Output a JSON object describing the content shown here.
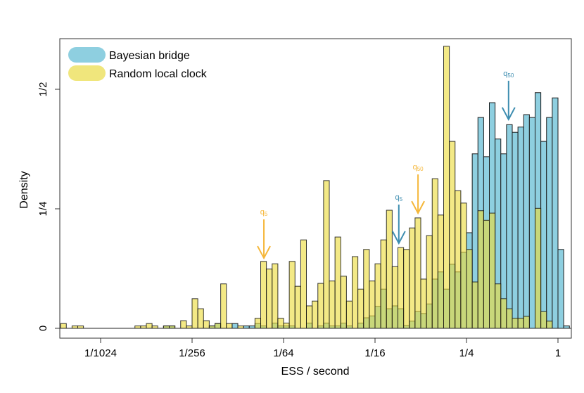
{
  "chart_data": {
    "type": "bar",
    "subtype": "overlaid-histogram",
    "xlabel": "ESS / second",
    "ylabel": "Density",
    "x_scale": "log2",
    "bin_start_log2": -10.875,
    "bin_width_log2": 0.125,
    "xlim_log2": [
      -10.9,
      0.3
    ],
    "ylim": [
      0,
      0.6
    ],
    "x_ticks_log2": [
      -10,
      -8,
      -6,
      -4,
      -2,
      0
    ],
    "x_tick_labels": [
      "1/1024",
      "1/256",
      "1/64",
      "1/16",
      "1/4",
      "1"
    ],
    "y_ticks": [
      0,
      0.25,
      0.5
    ],
    "y_tick_labels": [
      "0",
      "1/4",
      "1/2"
    ],
    "legend_position": "top-left",
    "series": [
      {
        "name": "Bayesian bridge",
        "color": "#8ecfe0",
        "values": [
          0,
          0,
          0,
          0,
          0,
          0,
          0,
          0,
          0,
          0,
          0,
          0,
          0,
          0,
          0,
          0,
          0,
          0,
          0.005,
          0.005,
          0,
          0,
          0,
          0,
          0,
          0,
          0.005,
          0.01,
          0,
          0,
          0.01,
          0,
          0.005,
          0.005,
          0.01,
          0.005,
          0,
          0.011,
          0.005,
          0.005,
          0.005,
          0,
          0,
          0.011,
          0,
          0.005,
          0.011,
          0.005,
          0.005,
          0.011,
          0.005,
          0,
          0.011,
          0.022,
          0.026,
          0.046,
          0.082,
          0.041,
          0.047,
          0.041,
          0.006,
          0.015,
          0.035,
          0.031,
          0.051,
          0.103,
          0.118,
          0.082,
          0.134,
          0.118,
          0.159,
          0.2,
          0.365,
          0.441,
          0.359,
          0.472,
          0.396,
          0.365,
          0.426,
          0.41,
          0.421,
          0.447,
          0.441,
          0.493,
          0.391,
          0.441,
          0.482,
          0.165,
          0.005
        ]
      },
      {
        "name": "Random local clock",
        "color": "#f0e67c",
        "values": [
          0.01,
          0,
          0.005,
          0.005,
          0,
          0,
          0,
          0,
          0,
          0,
          0,
          0,
          0,
          0.005,
          0.005,
          0.01,
          0.005,
          0,
          0.005,
          0.005,
          0,
          0.016,
          0.005,
          0.062,
          0.041,
          0.016,
          0.005,
          0.01,
          0.093,
          0.01,
          0,
          0.005,
          0,
          0,
          0.021,
          0.14,
          0.124,
          0.135,
          0.021,
          0.011,
          0.14,
          0.088,
          0.185,
          0.047,
          0.057,
          0.094,
          0.309,
          0.099,
          0.191,
          0.109,
          0.057,
          0.15,
          0.082,
          0.165,
          0.099,
          0.135,
          0.185,
          0.247,
          0.129,
          0.169,
          0.165,
          0.21,
          0.231,
          0.103,
          0.194,
          0.313,
          0.237,
          0.59,
          0.391,
          0.288,
          0.262,
          0.165,
          0.097,
          0.246,
          0.226,
          0.241,
          0.093,
          0.062,
          0.041,
          0.021,
          0.021,
          0.025,
          0,
          0.251,
          0.035,
          0.015,
          0,
          0,
          0
        ]
      }
    ],
    "annotations": [
      {
        "label": "q",
        "sub": "5",
        "series": "Random local clock",
        "x_log2": -6.43,
        "tip_density": 0.147,
        "color": "#f5b73a"
      },
      {
        "label": "q",
        "sub": "50",
        "series": "Random local clock",
        "x_log2": -3.06,
        "tip_density": 0.241,
        "color": "#f5b73a"
      },
      {
        "label": "q",
        "sub": "5",
        "series": "Bayesian bridge",
        "x_log2": -3.48,
        "tip_density": 0.178,
        "color": "#3d8db0"
      },
      {
        "label": "q",
        "sub": "50",
        "series": "Bayesian bridge",
        "x_log2": -1.08,
        "tip_density": 0.437,
        "color": "#3d8db0"
      }
    ]
  }
}
